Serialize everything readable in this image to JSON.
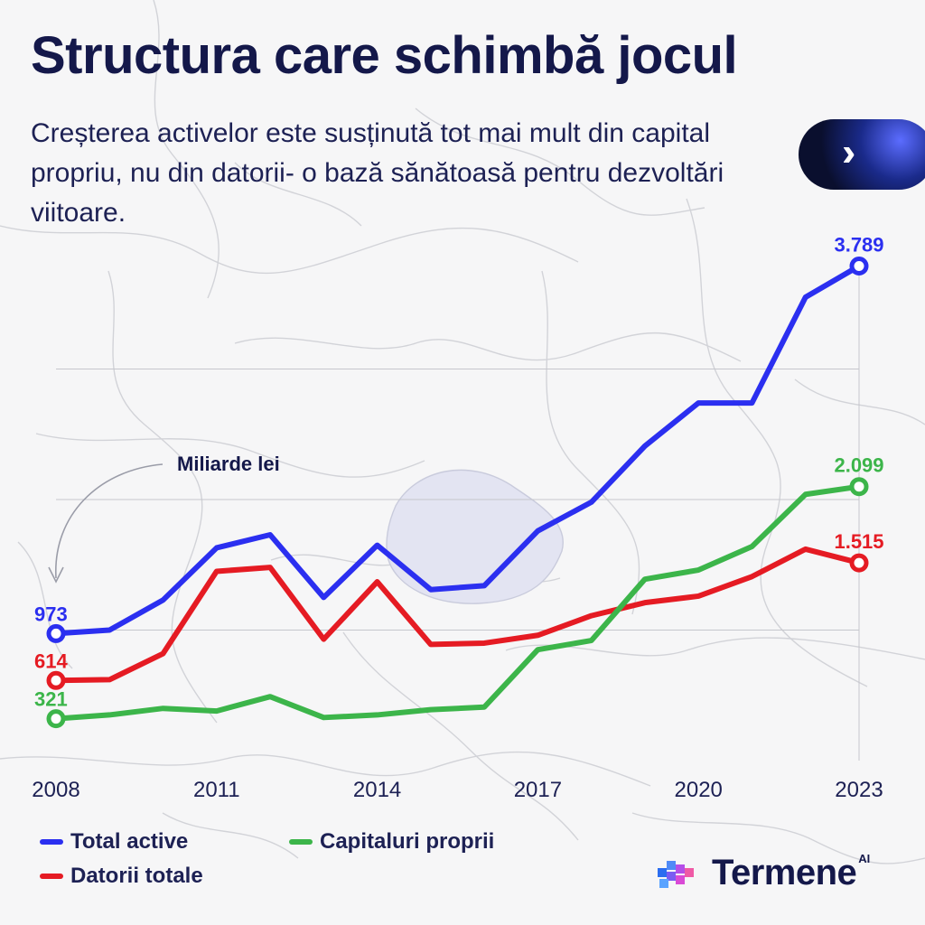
{
  "header": {
    "title": "Structura care schimbă jocul",
    "subtitle": "Creșterea activelor este susținută tot mai mult din capital propriu, nu din datorii- o bază sănătoasă pentru dezvoltări viitoare."
  },
  "badge": {
    "icon": "double-chevron-right-icon",
    "glyph": "››"
  },
  "chart_data": {
    "type": "line",
    "unit_label": "Miliarde lei",
    "x": [
      2008,
      2009,
      2010,
      2011,
      2012,
      2013,
      2014,
      2015,
      2016,
      2017,
      2018,
      2019,
      2020,
      2021,
      2022,
      2023
    ],
    "x_tick_labels": [
      "2008",
      "2011",
      "2014",
      "2017",
      "2020",
      "2023"
    ],
    "x_ticks": [
      2008,
      2011,
      2014,
      2017,
      2020,
      2023
    ],
    "ylim": [
      0,
      4000
    ],
    "grid": [
      1000,
      2000,
      3000
    ],
    "series": [
      {
        "name": "Total active",
        "color": "#2b2ff0",
        "values": [
          973,
          1000,
          1230,
          1630,
          1730,
          1250,
          1650,
          1310,
          1340,
          1760,
          1980,
          2410,
          2740,
          2740,
          3550,
          3789
        ],
        "start_label": "973",
        "end_label": "3.789"
      },
      {
        "name": "Datorii totale",
        "color": "#e51b23",
        "values": [
          614,
          620,
          820,
          1450,
          1480,
          930,
          1370,
          890,
          900,
          960,
          1110,
          1210,
          1260,
          1410,
          1620,
          1515
        ],
        "start_label": "614",
        "end_label": "1.515"
      },
      {
        "name": "Capitaluri proprii",
        "color": "#3cb54a",
        "values": [
          321,
          350,
          400,
          380,
          490,
          330,
          350,
          390,
          410,
          850,
          920,
          1390,
          1460,
          1640,
          2040,
          2099
        ],
        "start_label": "321",
        "end_label": "2.099"
      }
    ]
  },
  "legend": [
    {
      "label": "Total active",
      "color": "#2b2ff0"
    },
    {
      "label": "Capitaluri proprii",
      "color": "#3cb54a"
    },
    {
      "label": "Datorii totale",
      "color": "#e51b23"
    }
  ],
  "brand": {
    "name": "Termene",
    "suffix": "AI",
    "icon": "termene-cubes-logo-icon"
  }
}
